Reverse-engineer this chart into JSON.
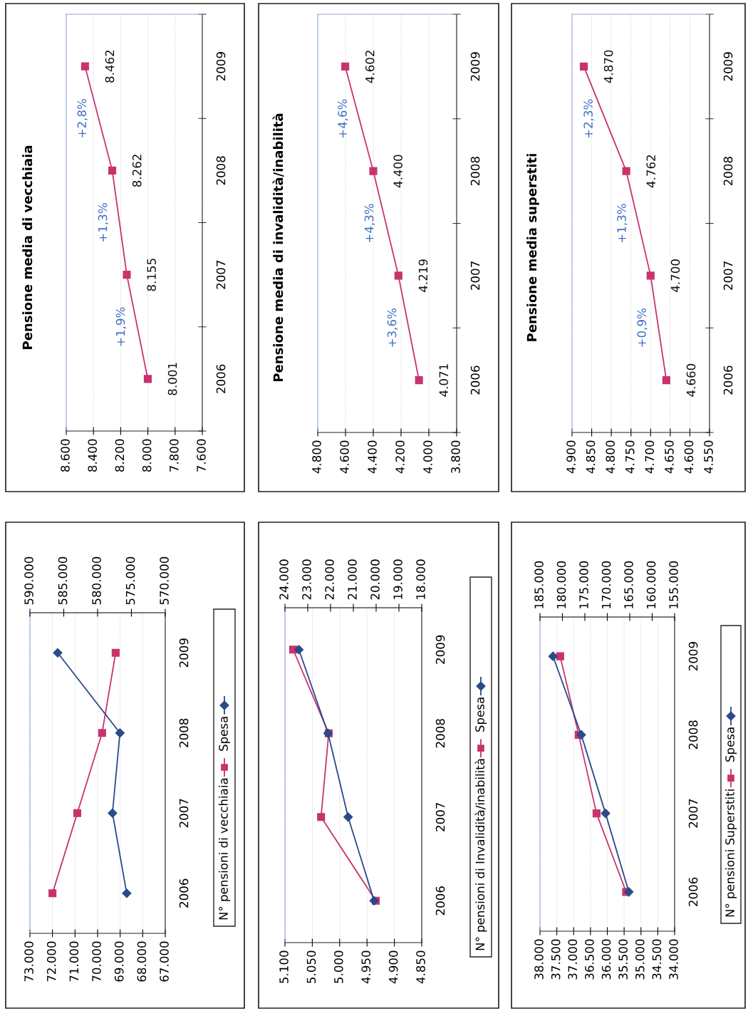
{
  "chart_data": [
    {
      "type": "line",
      "orientation": "horizontal",
      "categories": [
        "2009",
        "2008",
        "2007",
        "2006"
      ],
      "series": [
        {
          "name": "N° pensioni di vecchiaia",
          "color": "#c8336e",
          "marker": "square",
          "values": [
            69200,
            69800,
            70900,
            72000
          ]
        },
        {
          "name": "Spesa",
          "color": "#2b4a8a",
          "marker": "diamond",
          "axis": "x2",
          "values": [
            585900,
            576700,
            577800,
            575700
          ]
        }
      ],
      "xlim": [
        73000,
        67000
      ],
      "xticks": [
        {
          "value": 67000,
          "label": "67.000"
        },
        {
          "value": 68000,
          "label": "68.000"
        },
        {
          "value": 69000,
          "label": "69.000"
        },
        {
          "value": 70000,
          "label": "70.000"
        },
        {
          "value": 71000,
          "label": "71.000"
        },
        {
          "value": 72000,
          "label": "72.000"
        },
        {
          "value": 73000,
          "label": "73.000"
        }
      ],
      "x2lim": [
        590000,
        570000
      ],
      "x2ticks": [
        {
          "value": 570000,
          "label": "570.000"
        },
        {
          "value": 575000,
          "label": "575.000"
        },
        {
          "value": 580000,
          "label": "580.000"
        },
        {
          "value": 585000,
          "label": "585.000"
        },
        {
          "value": 590000,
          "label": "590.000"
        }
      ],
      "legend": "right",
      "grid": "x"
    },
    {
      "type": "line",
      "orientation": "horizontal",
      "title": "Pensione media di vecchiaia",
      "categories": [
        "2009",
        "2008",
        "2007",
        "2006"
      ],
      "series": [
        {
          "color": "#c8336e",
          "marker": "square",
          "values": [
            8462,
            8262,
            8155,
            8001
          ],
          "value_labels": [
            "8.462",
            "8.262",
            "8.155",
            "8.001"
          ]
        }
      ],
      "xlim": [
        8600,
        7600
      ],
      "xticks": [
        {
          "value": 7600,
          "label": "7.600"
        },
        {
          "value": 7800,
          "label": "7.800"
        },
        {
          "value": 8000,
          "label": "8.000"
        },
        {
          "value": 8200,
          "label": "8.200"
        },
        {
          "value": 8400,
          "label": "8.400"
        },
        {
          "value": 8600,
          "label": "8.600"
        }
      ],
      "annotations": [
        "+2,8%",
        "+1,3%",
        "+1,9%"
      ],
      "grid": "x"
    },
    {
      "type": "line",
      "orientation": "horizontal",
      "categories": [
        "2009",
        "2008",
        "2007",
        "2006"
      ],
      "series": [
        {
          "name": "N° pensioni di Invalidità/inabilità",
          "color": "#c8336e",
          "marker": "square",
          "values": [
            5085,
            5020,
            5034,
            4934
          ]
        },
        {
          "name": "Spesa",
          "color": "#2b4a8a",
          "marker": "diamond",
          "axis": "x2",
          "values": [
            23390,
            22110,
            21230,
            20090
          ]
        }
      ],
      "xlim": [
        5100,
        4850
      ],
      "xticks": [
        {
          "value": 4850,
          "label": "4.850"
        },
        {
          "value": 4900,
          "label": "4.900"
        },
        {
          "value": 4950,
          "label": "4.950"
        },
        {
          "value": 5000,
          "label": "5.000"
        },
        {
          "value": 5050,
          "label": "5.050"
        },
        {
          "value": 5100,
          "label": "5.100"
        }
      ],
      "x2lim": [
        24000,
        18000
      ],
      "x2ticks": [
        {
          "value": 18000,
          "label": "18.000"
        },
        {
          "value": 19000,
          "label": "19.000"
        },
        {
          "value": 20000,
          "label": "20.000"
        },
        {
          "value": 21000,
          "label": "21.000"
        },
        {
          "value": 22000,
          "label": "22.000"
        },
        {
          "value": 23000,
          "label": "23.000"
        },
        {
          "value": 24000,
          "label": "24.000"
        }
      ],
      "legend": "right",
      "grid": "x"
    },
    {
      "type": "line",
      "orientation": "horizontal",
      "title": "Pensione media di invalidità/inabilità",
      "categories": [
        "2009",
        "2008",
        "2007",
        "2006"
      ],
      "series": [
        {
          "color": "#c8336e",
          "marker": "square",
          "values": [
            4602,
            4400,
            4219,
            4071
          ],
          "value_labels": [
            "4.602",
            "4.400",
            "4.219",
            "4.071"
          ]
        }
      ],
      "xlim": [
        4800,
        3800
      ],
      "xticks": [
        {
          "value": 3800,
          "label": "3.800"
        },
        {
          "value": 4000,
          "label": "4.000"
        },
        {
          "value": 4200,
          "label": "4.200"
        },
        {
          "value": 4400,
          "label": "4.400"
        },
        {
          "value": 4600,
          "label": "4.600"
        },
        {
          "value": 4800,
          "label": "4.800"
        }
      ],
      "annotations": [
        "+4,6%",
        "+4,3%",
        "+3,6%"
      ],
      "grid": "x"
    },
    {
      "type": "line",
      "orientation": "horizontal",
      "categories": [
        "2009",
        "2008",
        "2007",
        "2006"
      ],
      "series": [
        {
          "name": "N° pensioni Superstiti",
          "color": "#c8336e",
          "marker": "square",
          "values": [
            37400,
            36850,
            36320,
            35440
          ]
        },
        {
          "name": "Spesa",
          "color": "#2b4a8a",
          "marker": "diamond",
          "axis": "x2",
          "values": [
            182100,
            175800,
            170400,
            165200
          ]
        }
      ],
      "xlim": [
        38000,
        34000
      ],
      "xticks": [
        {
          "value": 34000,
          "label": "34.000"
        },
        {
          "value": 34500,
          "label": "34.500"
        },
        {
          "value": 35000,
          "label": "35.000"
        },
        {
          "value": 35500,
          "label": "35.500"
        },
        {
          "value": 36000,
          "label": "36.000"
        },
        {
          "value": 36500,
          "label": "36.500"
        },
        {
          "value": 37000,
          "label": "37.000"
        },
        {
          "value": 37500,
          "label": "37.500"
        },
        {
          "value": 38000,
          "label": "38.000"
        }
      ],
      "x2lim": [
        185000,
        155000
      ],
      "x2ticks": [
        {
          "value": 155000,
          "label": "155.000"
        },
        {
          "value": 160000,
          "label": "160.000"
        },
        {
          "value": 165000,
          "label": "165.000"
        },
        {
          "value": 170000,
          "label": "170.000"
        },
        {
          "value": 175000,
          "label": "175.000"
        },
        {
          "value": 180000,
          "label": "180.000"
        },
        {
          "value": 185000,
          "label": "185.000"
        }
      ],
      "legend": "right",
      "grid": "x"
    },
    {
      "type": "line",
      "orientation": "horizontal",
      "title": "Pensione media superstiti",
      "categories": [
        "2009",
        "2008",
        "2007",
        "2006"
      ],
      "series": [
        {
          "color": "#c8336e",
          "marker": "square",
          "values": [
            4870,
            4762,
            4700,
            4660
          ],
          "value_labels": [
            "4.870",
            "4.762",
            "4.700",
            "4.660"
          ]
        }
      ],
      "xlim": [
        4900,
        4550
      ],
      "xticks": [
        {
          "value": 4550,
          "label": "4.550"
        },
        {
          "value": 4600,
          "label": "4.600"
        },
        {
          "value": 4650,
          "label": "4.650"
        },
        {
          "value": 4700,
          "label": "4.700"
        },
        {
          "value": 4750,
          "label": "4.750"
        },
        {
          "value": 4800,
          "label": "4.800"
        },
        {
          "value": 4850,
          "label": "4.850"
        },
        {
          "value": 4900,
          "label": "4.900"
        }
      ],
      "annotations": [
        "+2,3%",
        "+1,3%",
        "+0,9%"
      ],
      "grid": "x"
    }
  ]
}
